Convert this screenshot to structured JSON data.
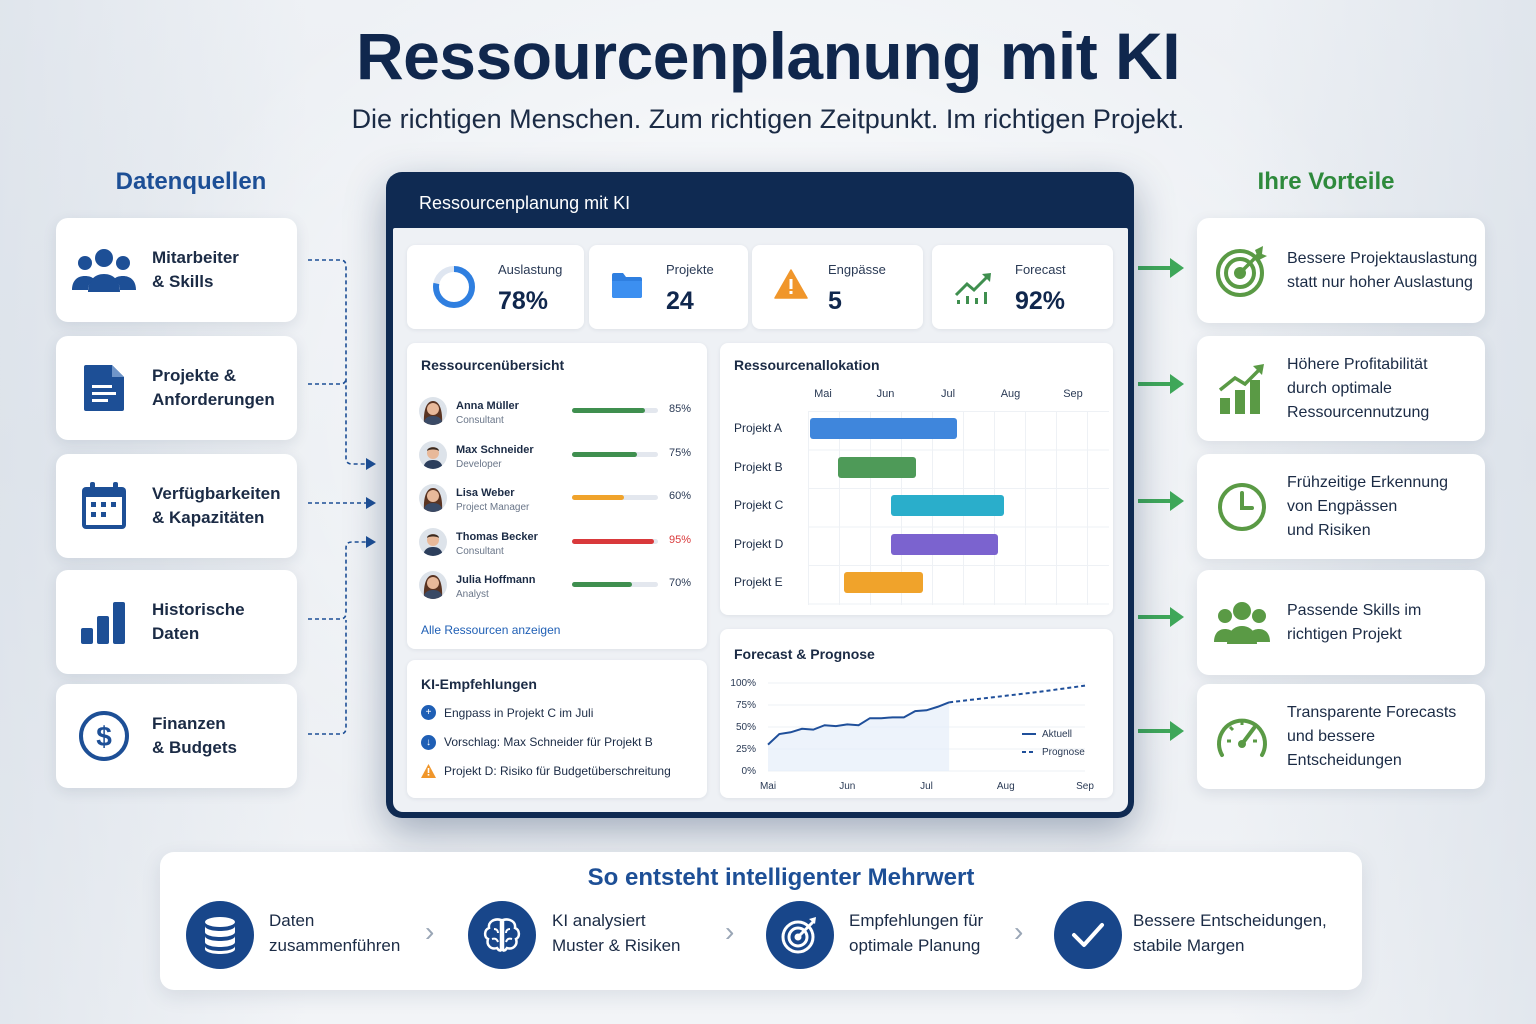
{
  "header": {
    "title": "Ressourcenplanung mit KI",
    "subtitle": "Die richtigen Menschen. Zum richtigen Zeitpunkt. Im richtigen Projekt."
  },
  "sources": {
    "heading": "Datenquellen",
    "items": [
      {
        "label": "Mitarbeiter\n& Skills",
        "icon": "people-icon"
      },
      {
        "label": "Projekte &\nAnforderungen",
        "icon": "document-icon"
      },
      {
        "label": "Verfügbarkeiten\n& Kapazitäten",
        "icon": "calendar-icon"
      },
      {
        "label": "Historische\nDaten",
        "icon": "bar-chart-icon"
      },
      {
        "label": "Finanzen\n& Budgets",
        "icon": "dollar-icon"
      }
    ]
  },
  "benefits": {
    "heading": "Ihre Vorteile",
    "items": [
      {
        "label": "Bessere Projektauslastung\nstatt nur hoher Auslastung",
        "icon": "target-icon"
      },
      {
        "label": "Höhere Profitabilität\ndurch optimale\nRessourcennutzung",
        "icon": "growth-chart-icon"
      },
      {
        "label": "Frühzeitige Erkennung\nvon Engpässen\nund Risiken",
        "icon": "clock-icon"
      },
      {
        "label": "Passende Skills im\nrichtigen Projekt",
        "icon": "team-icon"
      },
      {
        "label": "Transparente Forecasts\nund bessere\nEntscheidungen",
        "icon": "gauge-icon"
      }
    ]
  },
  "dashboard": {
    "title": "Ressourcenplanung mit KI",
    "kpis": [
      {
        "label": "Auslastung",
        "value": "78%",
        "icon": "donut-icon",
        "fill": 0.78
      },
      {
        "label": "Projekte",
        "value": "24",
        "icon": "folder-icon"
      },
      {
        "label": "Engpässe",
        "value": "5",
        "icon": "warning-icon"
      },
      {
        "label": "Forecast",
        "value": "92%",
        "icon": "trend-icon"
      }
    ],
    "overview": {
      "title": "Ressourcenübersicht",
      "people": [
        {
          "name": "Anna Müller",
          "role": "Consultant",
          "pct_label": "85%",
          "value": 0.85,
          "color": "#3f8f4f",
          "gender": "f"
        },
        {
          "name": "Max Schneider",
          "role": "Developer",
          "pct_label": "75%",
          "value": 0.75,
          "color": "#3f8f4f",
          "gender": "m"
        },
        {
          "name": "Lisa Weber",
          "role": "Project Manager",
          "pct_label": "60%",
          "value": 0.6,
          "color": "#f0a32b",
          "gender": "f"
        },
        {
          "name": "Thomas Becker",
          "role": "Consultant",
          "pct_label": "95%",
          "value": 0.95,
          "color": "#d9393b",
          "gender": "m"
        },
        {
          "name": "Julia Hoffmann",
          "role": "Analyst",
          "pct_label": "70%",
          "value": 0.7,
          "color": "#3f8f4f",
          "gender": "f"
        }
      ],
      "link": "Alle Ressourcen anzeigen"
    },
    "recommendations": {
      "title": "KI-Empfehlungen",
      "items": [
        {
          "text": "Engpass in Projekt C im Juli",
          "type": "plus"
        },
        {
          "text": "Vorschlag: Max Schneider für Projekt B",
          "type": "down"
        },
        {
          "text": "Projekt D: Risiko für Budgetüberschreitung",
          "type": "warning"
        }
      ]
    },
    "allocation": {
      "title": "Ressourcenallokation",
      "months": [
        "Mai",
        "Jun",
        "Jul",
        "Aug",
        "Sep"
      ],
      "projects": [
        {
          "name": "Projekt A",
          "start": 0.0,
          "end": 2.35,
          "color": "#3f86dc"
        },
        {
          "name": "Projekt B",
          "start": 0.45,
          "end": 1.7,
          "color": "#4e9a58"
        },
        {
          "name": "Projekt C",
          "start": 1.3,
          "end": 3.1,
          "color": "#2aaecb"
        },
        {
          "name": "Projekt D",
          "start": 1.3,
          "end": 3.0,
          "color": "#7b63cf"
        },
        {
          "name": "Projekt E",
          "start": 0.55,
          "end": 1.8,
          "color": "#f0a32b"
        }
      ]
    },
    "forecast": {
      "title": "Forecast & Prognose",
      "legend_actual": "Aktuell",
      "legend_forecast": "Prognose"
    }
  },
  "chart_data": {
    "type": "line",
    "title": "Forecast & Prognose",
    "x_ticks": [
      "Mai",
      "Jun",
      "Jul",
      "Aug",
      "Sep"
    ],
    "y_ticks": [
      "0%",
      "25%",
      "50%",
      "75%",
      "100%"
    ],
    "ylim": [
      0,
      100
    ],
    "series": [
      {
        "name": "Aktuell",
        "style": "solid",
        "color": "#1f4f9a",
        "x": [
          0,
          0.15,
          0.3,
          0.45,
          0.6,
          0.75,
          0.9,
          1.05,
          1.2,
          1.35,
          1.5,
          1.65,
          1.8,
          1.95,
          2.1,
          2.25,
          2.4
        ],
        "y": [
          30,
          42,
          44,
          48,
          47,
          52,
          51,
          53,
          52,
          60,
          60,
          61,
          61,
          68,
          69,
          73,
          78
        ]
      },
      {
        "name": "Prognose",
        "style": "dashed",
        "color": "#1f4f9a",
        "x": [
          2.4,
          3.0,
          3.6,
          4.2
        ],
        "y": [
          78,
          84,
          90,
          97
        ]
      }
    ]
  },
  "process": {
    "title": "So entsteht intelligenter Mehrwert",
    "steps": [
      {
        "label": "Daten\nzusammenführen",
        "icon": "database-icon"
      },
      {
        "label": "KI analysiert\nMuster & Risiken",
        "icon": "brain-icon"
      },
      {
        "label": "Empfehlungen für\noptimale Planung",
        "icon": "target-icon"
      },
      {
        "label": "Bessere Entscheidungen,\nstabile Margen",
        "icon": "check-icon"
      }
    ]
  }
}
